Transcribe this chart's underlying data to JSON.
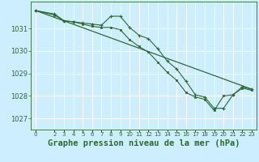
{
  "background_color": "#cceeff",
  "grid_color": "#ffffff",
  "line_color": "#2d6a2d",
  "marker_color": "#2d6a2d",
  "xlabel": "Graphe pression niveau de la mer (hPa)",
  "xlabel_fontsize": 7.5,
  "ylabel_fontsize": 6,
  "xtick_fontsize": 5,
  "xlim": [
    -0.5,
    23.5
  ],
  "ylim": [
    1026.5,
    1032.2
  ],
  "yticks": [
    1027,
    1028,
    1029,
    1030,
    1031
  ],
  "xtick_vals": [
    0,
    2,
    3,
    4,
    5,
    6,
    7,
    8,
    9,
    10,
    11,
    12,
    13,
    14,
    15,
    16,
    17,
    18,
    19,
    20,
    21,
    22,
    23
  ],
  "series": [
    {
      "x": [
        0,
        23
      ],
      "y": [
        1031.8,
        1028.3
      ],
      "marker": null,
      "linewidth": 0.9
    },
    {
      "x": [
        0,
        2,
        3,
        4,
        5,
        6,
        7,
        8,
        9,
        10,
        11,
        12,
        13,
        14,
        15,
        16,
        17,
        18,
        19,
        20,
        21,
        22,
        23
      ],
      "y": [
        1031.8,
        1031.65,
        1031.35,
        1031.3,
        1031.25,
        1031.2,
        1031.15,
        1031.55,
        1031.55,
        1031.05,
        1030.7,
        1030.55,
        1030.1,
        1029.55,
        1029.2,
        1028.65,
        1028.05,
        1027.95,
        1027.45,
        1027.45,
        1028.05,
        1028.4,
        1028.3
      ],
      "marker": "+",
      "linewidth": 0.8
    },
    {
      "x": [
        0,
        2,
        3,
        4,
        5,
        6,
        7,
        8,
        9,
        10,
        11,
        12,
        13,
        14,
        15,
        16,
        17,
        18,
        19,
        20,
        21,
        22,
        23
      ],
      "y": [
        1031.8,
        1031.6,
        1031.35,
        1031.3,
        1031.2,
        1031.1,
        1031.05,
        1031.05,
        1030.95,
        1030.5,
        1030.2,
        1029.95,
        1029.5,
        1029.05,
        1028.7,
        1028.15,
        1027.95,
        1027.85,
        1027.35,
        1028.0,
        1028.05,
        1028.35,
        1028.25
      ],
      "marker": "s",
      "linewidth": 0.8
    }
  ]
}
